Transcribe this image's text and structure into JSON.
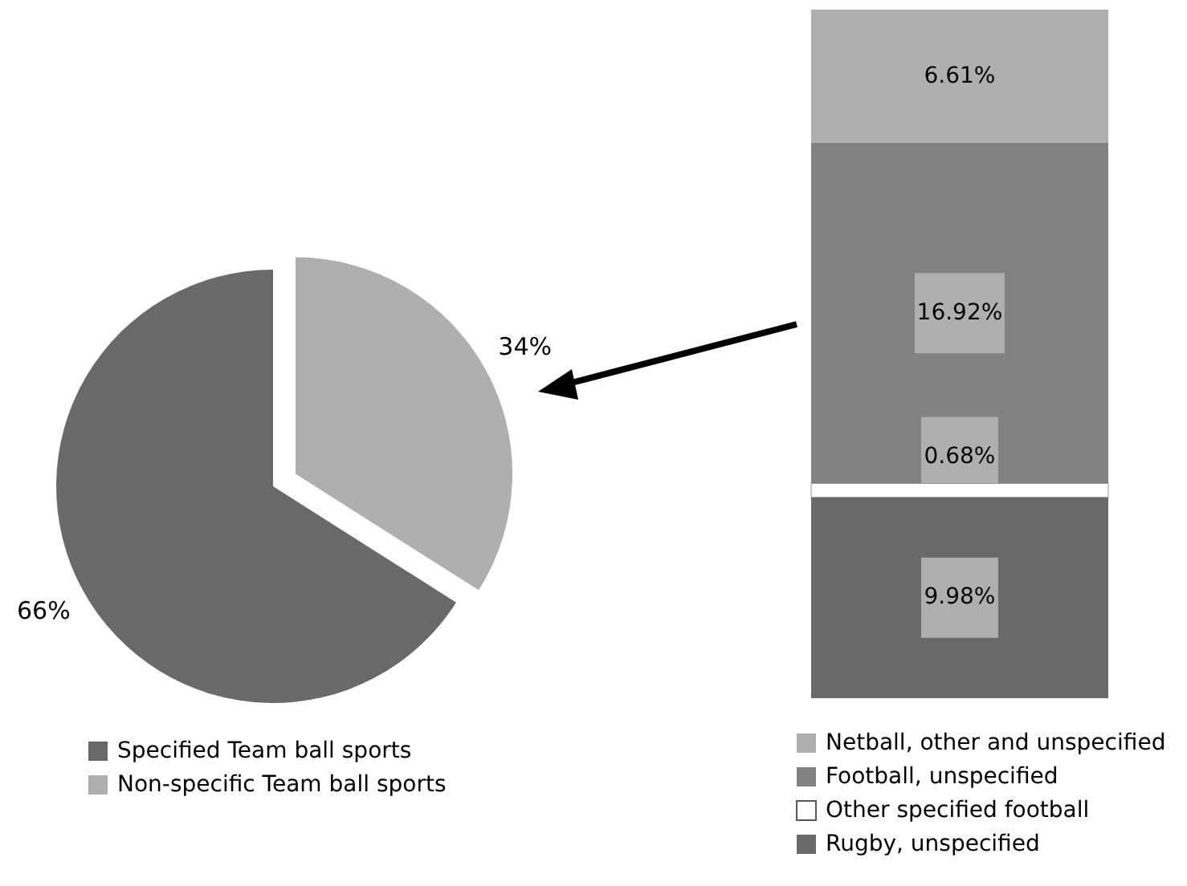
{
  "chart_data": [
    {
      "type": "pie",
      "categories": [
        "Specified Team ball sports",
        "Non-specific Team ball sports"
      ],
      "values": [
        66,
        34
      ],
      "colors": [
        "#696969",
        "#afafaf"
      ],
      "value_labels": [
        "66%",
        "34%"
      ],
      "legend": "bottom"
    },
    {
      "type": "bar",
      "stacked": true,
      "categories": [
        null
      ],
      "series": [
        {
          "name": "Rugby, unspecified",
          "color": "#696969",
          "values": [
            9.98
          ],
          "value_labels": [
            "9.98%"
          ]
        },
        {
          "name": "Other specified football",
          "color": "#ffffff",
          "values": [
            0.68
          ],
          "value_labels": [
            "0.68%"
          ]
        },
        {
          "name": "Football, unspecified",
          "color": "#828282",
          "values": [
            16.92
          ],
          "value_labels": [
            "16.92%"
          ]
        },
        {
          "name": "Netball, other and unspecified",
          "color": "#afafaf",
          "values": [
            6.61
          ],
          "value_labels": [
            "6.61%"
          ]
        }
      ],
      "legend": "bottom"
    }
  ]
}
